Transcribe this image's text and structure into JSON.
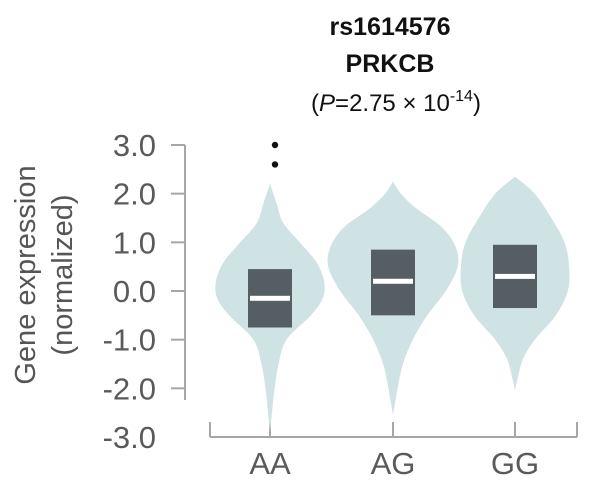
{
  "chart_data": {
    "type": "violin",
    "title": {
      "snp": "rs1614576",
      "gene": "PRKCB",
      "p_open": "(",
      "p_italic": "P",
      "p_text": "=2.75 × 10",
      "p_exp": "-14",
      "p_close": ")"
    },
    "ylabel_line1": "Gene expression",
    "ylabel_line2": "(normalized)",
    "yticks": [
      {
        "value": 3.0,
        "label": "3.0"
      },
      {
        "value": 2.0,
        "label": "2.0"
      },
      {
        "value": 1.0,
        "label": "1.0"
      },
      {
        "value": 0.0,
        "label": "0.0"
      },
      {
        "value": -1.0,
        "label": "-1.0"
      },
      {
        "value": -2.0,
        "label": "-2.0"
      },
      {
        "value": -3.0,
        "label": "-3.0"
      }
    ],
    "categories": [
      "AA",
      "AG",
      "GG"
    ],
    "groups": [
      {
        "name": "AA",
        "min": -2.9,
        "max": 2.2,
        "q1": -0.75,
        "median": -0.15,
        "q3": 0.45,
        "outliers": [
          3.0,
          2.6
        ],
        "profile": [
          [
            -2.9,
            0.0
          ],
          [
            -2.5,
            0.03
          ],
          [
            -2.0,
            0.07
          ],
          [
            -1.5,
            0.13
          ],
          [
            -1.0,
            0.25
          ],
          [
            -0.5,
            0.62
          ],
          [
            -0.15,
            0.8
          ],
          [
            0.2,
            0.82
          ],
          [
            0.6,
            0.7
          ],
          [
            1.0,
            0.45
          ],
          [
            1.4,
            0.2
          ],
          [
            1.8,
            0.1
          ],
          [
            2.2,
            0.0
          ]
        ]
      },
      {
        "name": "AG",
        "min": -2.55,
        "max": 2.25,
        "q1": -0.5,
        "median": 0.2,
        "q3": 0.85,
        "outliers": [],
        "profile": [
          [
            -2.55,
            0.0
          ],
          [
            -2.0,
            0.07
          ],
          [
            -1.5,
            0.15
          ],
          [
            -1.0,
            0.3
          ],
          [
            -0.5,
            0.52
          ],
          [
            0.0,
            0.8
          ],
          [
            0.5,
            0.98
          ],
          [
            0.9,
            0.95
          ],
          [
            1.3,
            0.75
          ],
          [
            1.7,
            0.35
          ],
          [
            2.0,
            0.12
          ],
          [
            2.25,
            0.0
          ]
        ]
      },
      {
        "name": "GG",
        "min": -2.05,
        "max": 2.35,
        "q1": -0.35,
        "median": 0.3,
        "q3": 0.95,
        "outliers": [],
        "profile": [
          [
            -2.05,
            0.0
          ],
          [
            -1.8,
            0.04
          ],
          [
            -1.4,
            0.12
          ],
          [
            -1.0,
            0.3
          ],
          [
            -0.5,
            0.62
          ],
          [
            0.0,
            0.8
          ],
          [
            0.5,
            0.82
          ],
          [
            1.0,
            0.75
          ],
          [
            1.5,
            0.55
          ],
          [
            2.0,
            0.3
          ],
          [
            2.35,
            0.0
          ]
        ]
      }
    ],
    "ylim": [
      -3.0,
      3.0
    ],
    "colors": {
      "violin": "#cfe3e4",
      "box": "#545e63",
      "median": "#ffffff",
      "outlier": "#111111",
      "axis": "#a6a6a6",
      "tick_text": "#5a5a5a"
    },
    "grid": false,
    "legend": "none"
  }
}
